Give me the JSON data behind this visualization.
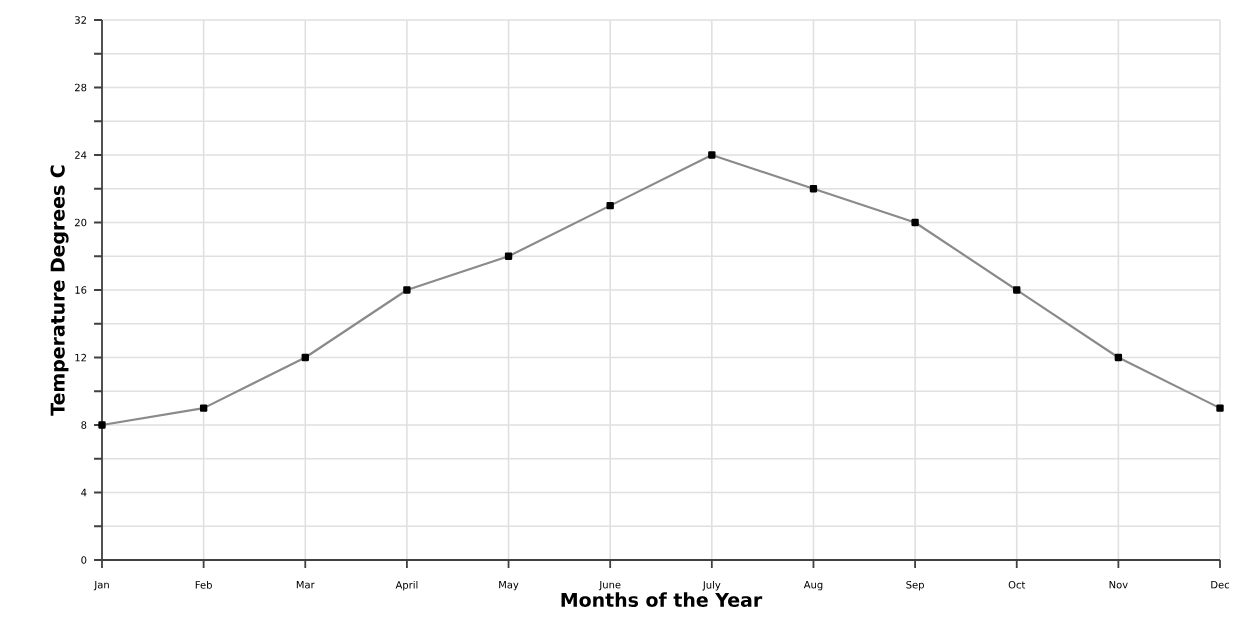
{
  "chart_data": {
    "type": "line",
    "xlabel": "Months of the Year",
    "ylabel": "Temperature Degrees  C",
    "categories": [
      "Jan",
      "Feb",
      "Mar",
      "April",
      "May",
      "June",
      "July",
      "Aug",
      "Sep",
      "Oct",
      "Nov",
      "Dec"
    ],
    "series": [
      {
        "color": "#8a8a8a",
        "values": [
          8,
          9,
          12,
          16,
          18,
          21,
          24,
          22,
          20,
          16,
          12,
          9
        ]
      }
    ],
    "ylim": [
      0,
      32
    ],
    "yticks": [
      0,
      {
        "value": 2,
        "label": null
      },
      4,
      {
        "value": 6,
        "label": null
      },
      8,
      {
        "value": 10,
        "label": null
      },
      12,
      {
        "value": 14,
        "label": null
      },
      16,
      {
        "value": 18,
        "label": null
      },
      20,
      {
        "value": 22,
        "label": null
      },
      24,
      {
        "value": 26,
        "label": null
      },
      28,
      {
        "value": 30,
        "label": null
      },
      32
    ],
    "grid": true,
    "marker": "square",
    "line_style": "solid"
  }
}
